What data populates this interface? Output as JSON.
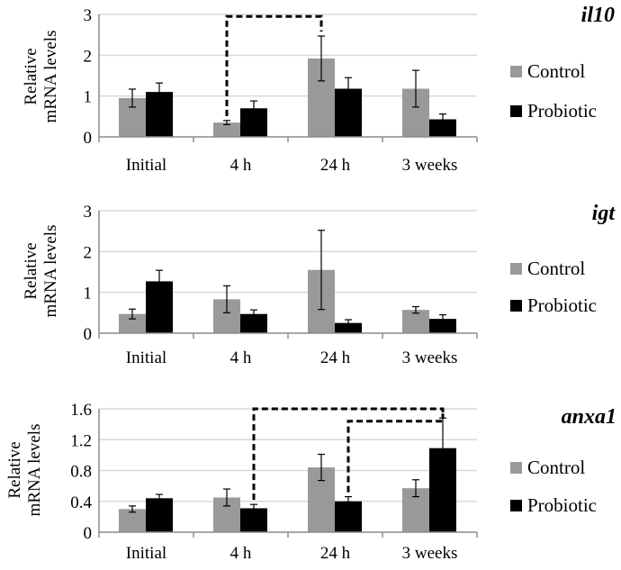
{
  "colors": {
    "control": "#999999",
    "probiotic": "#000000",
    "grid": "#d9d9d9",
    "axis": "#8c8c8c"
  },
  "chart_data": [
    {
      "type": "bar",
      "title": "il10",
      "ylabel": [
        "Relative",
        "mRNA levels"
      ],
      "categories": [
        "Initial",
        "4 h",
        "24 h",
        "3 weeks"
      ],
      "ylim": [
        0,
        3
      ],
      "yticks": [
        0,
        1,
        2,
        3
      ],
      "tick_labels": [
        "0",
        "1",
        "2",
        "3"
      ],
      "series": [
        {
          "name": "Control",
          "values": [
            0.95,
            0.35,
            1.92,
            1.18
          ],
          "errors": [
            0.22,
            0.05,
            0.55,
            0.45
          ]
        },
        {
          "name": "Probiotic",
          "values": [
            1.1,
            0.7,
            1.18,
            0.43
          ],
          "errors": [
            0.22,
            0.18,
            0.27,
            0.13
          ]
        }
      ],
      "significance": [
        {
          "from": [
            1,
            0
          ],
          "to": [
            2,
            0
          ],
          "level": 2.95
        }
      ]
    },
    {
      "type": "bar",
      "title": "igt",
      "ylabel": [
        "Relative",
        "mRNA levels"
      ],
      "categories": [
        "Initial",
        "4 h",
        "24 h",
        "3 weeks"
      ],
      "ylim": [
        0,
        3
      ],
      "yticks": [
        0,
        1,
        2,
        3
      ],
      "tick_labels": [
        "0",
        "1",
        "2",
        "3"
      ],
      "series": [
        {
          "name": "Control",
          "values": [
            0.47,
            0.83,
            1.55,
            0.57
          ],
          "errors": [
            0.12,
            0.33,
            0.97,
            0.08
          ]
        },
        {
          "name": "Probiotic",
          "values": [
            1.27,
            0.47,
            0.25,
            0.35
          ],
          "errors": [
            0.27,
            0.1,
            0.08,
            0.1
          ]
        }
      ],
      "significance": []
    },
    {
      "type": "bar",
      "title": "anxa1",
      "ylabel": [
        "Relative",
        "mRNA levels"
      ],
      "categories": [
        "Initial",
        "4 h",
        "24 h",
        "3 weeks"
      ],
      "ylim": [
        0,
        1.6
      ],
      "yticks": [
        0,
        0.4,
        0.8,
        1.2,
        1.6
      ],
      "tick_labels": [
        "0",
        "0.4",
        "0.8",
        "1.2",
        "1.6"
      ],
      "series": [
        {
          "name": "Control",
          "values": [
            0.3,
            0.45,
            0.84,
            0.57
          ],
          "errors": [
            0.04,
            0.11,
            0.17,
            0.11
          ]
        },
        {
          "name": "Probiotic",
          "values": [
            0.44,
            0.31,
            0.4,
            1.09
          ],
          "errors": [
            0.05,
            0.05,
            0.06,
            0.39
          ]
        }
      ],
      "significance": [
        {
          "from": [
            1,
            1
          ],
          "to": [
            3,
            1
          ],
          "level": 1.6
        },
        {
          "from": [
            2,
            1
          ],
          "to": [
            3,
            1
          ],
          "level": 1.44
        }
      ]
    }
  ]
}
